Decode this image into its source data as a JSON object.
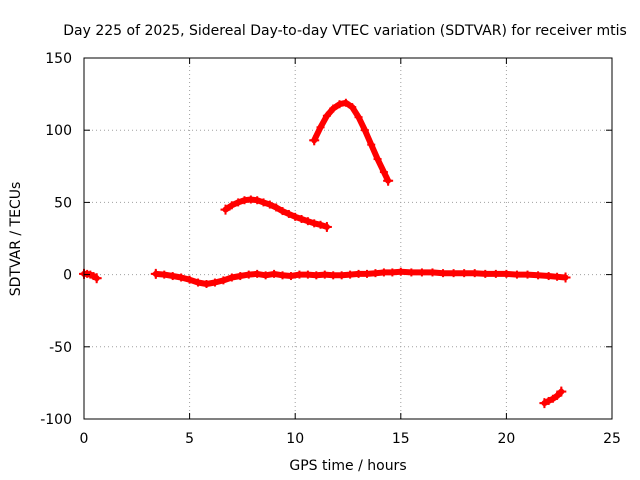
{
  "chart_data": {
    "type": "scatter",
    "title": "Day 225 of 2025, Sidereal Day-to-day VTEC variation (SDTVAR) for receiver mtis",
    "xlabel": "GPS time / hours",
    "ylabel": "SDTVAR / TECUs",
    "xlim": [
      0,
      25
    ],
    "ylim": [
      -100,
      150
    ],
    "xticks": [
      0,
      5,
      10,
      15,
      20,
      25
    ],
    "yticks": [
      -100,
      -50,
      0,
      50,
      100,
      150
    ],
    "xtick_labels": [
      "0",
      "5",
      "10",
      "15",
      "20",
      "25"
    ],
    "ytick_labels": [
      "-100",
      "-50",
      "0",
      "50",
      "100",
      "150"
    ],
    "grid": true,
    "marker": "+",
    "color": "#ff0000",
    "series": [
      {
        "name": "arc-1",
        "x": [
          0.0,
          0.15,
          0.3,
          0.45,
          0.6
        ],
        "y": [
          0.5,
          0.5,
          0.0,
          -1.0,
          -2.5
        ]
      },
      {
        "name": "arc-2",
        "x": [
          3.4,
          3.8,
          4.2,
          4.6,
          5.0,
          5.4,
          5.8,
          6.2,
          6.6,
          7.0,
          7.4,
          7.8,
          8.2,
          8.6,
          9.0,
          9.4,
          9.8,
          10.2,
          10.6,
          11.0,
          11.4,
          11.8,
          12.2,
          12.6,
          13.0,
          13.4,
          13.8,
          14.2,
          14.6,
          15.0,
          15.5,
          16.0,
          16.5,
          17.0,
          17.5,
          18.0,
          18.5,
          19.0,
          19.5,
          20.0,
          20.5,
          21.0,
          21.5,
          22.0,
          22.4,
          22.8
        ],
        "y": [
          0.5,
          0.0,
          -1.0,
          -2.0,
          -3.5,
          -5.5,
          -6.5,
          -5.5,
          -4.0,
          -2.0,
          -1.0,
          0.0,
          0.5,
          -0.5,
          0.5,
          -0.5,
          -1.0,
          0.0,
          0.0,
          -0.5,
          0.0,
          -0.5,
          -0.5,
          0.0,
          0.5,
          0.5,
          1.0,
          1.5,
          1.5,
          2.0,
          1.5,
          1.5,
          1.5,
          1.0,
          1.0,
          1.0,
          1.0,
          0.5,
          0.5,
          0.5,
          0.0,
          0.0,
          -0.5,
          -1.0,
          -1.5,
          -2.0
        ]
      },
      {
        "name": "arc-3",
        "x": [
          6.7,
          7.0,
          7.3,
          7.6,
          7.9,
          8.2,
          8.5,
          8.8,
          9.1,
          9.4,
          9.7,
          10.0,
          10.3,
          10.6,
          10.9,
          11.2,
          11.5
        ],
        "y": [
          45,
          48,
          50,
          51.5,
          52,
          51.5,
          50,
          48.5,
          46.5,
          44,
          42,
          40,
          38.5,
          37,
          35.5,
          34.5,
          33
        ]
      },
      {
        "name": "arc-4",
        "x": [
          10.9,
          11.2,
          11.5,
          11.8,
          12.1,
          12.4,
          12.7,
          13.0,
          13.3,
          13.6,
          13.9,
          14.2,
          14.4
        ],
        "y": [
          93,
          102,
          110,
          115,
          118,
          119,
          116,
          109,
          100,
          90,
          80,
          71,
          65
        ]
      },
      {
        "name": "arc-5",
        "x": [
          21.8,
          22.0,
          22.2,
          22.4,
          22.6
        ],
        "y": [
          -89,
          -87.5,
          -86,
          -84,
          -81
        ]
      }
    ]
  }
}
